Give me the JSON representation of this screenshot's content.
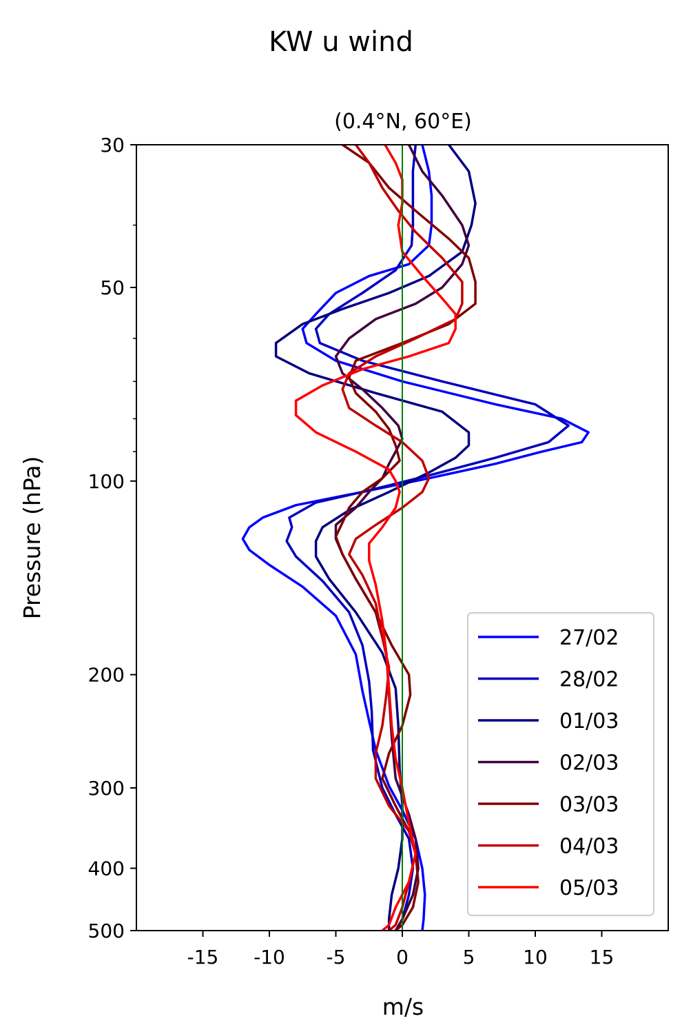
{
  "chart_data": {
    "type": "line",
    "title": "KW u wind",
    "subtitle": "(0.4°N, 60°E)",
    "xlabel": "m/s",
    "ylabel": "Pressure (hPa)",
    "xlim": [
      -20,
      20
    ],
    "ylim": [
      500,
      30
    ],
    "yscale": "log",
    "x_ticks": [
      -15,
      -10,
      -5,
      0,
      5,
      10,
      15
    ],
    "x_tick_labels": [
      "-15",
      "-10",
      "-5",
      "0",
      "5",
      "10",
      "15"
    ],
    "y_ticks": [
      30,
      50,
      100,
      200,
      300,
      400,
      500
    ],
    "y_tick_labels": [
      "30",
      "50",
      "100",
      "200",
      "300",
      "400",
      "500"
    ],
    "y_minor_ticks": [
      40,
      60,
      70,
      80,
      90
    ],
    "zero_line_color": "#008000",
    "legend_position": "lower-right",
    "series": [
      {
        "name": "27/02",
        "color": "#0000ff",
        "points": [
          [
            1.5,
            30
          ],
          [
            2.0,
            33
          ],
          [
            2.2,
            36
          ],
          [
            2.2,
            40
          ],
          [
            2.0,
            43
          ],
          [
            0.5,
            46
          ],
          [
            -2.5,
            48
          ],
          [
            -5,
            51
          ],
          [
            -6.5,
            55
          ],
          [
            -7.5,
            58
          ],
          [
            -7.2,
            61
          ],
          [
            -5,
            65
          ],
          [
            0,
            70
          ],
          [
            7,
            76
          ],
          [
            12,
            80
          ],
          [
            14,
            84
          ],
          [
            13.5,
            87
          ],
          [
            10.5,
            90
          ],
          [
            7,
            94
          ],
          [
            2,
            99
          ],
          [
            -3,
            104
          ],
          [
            -8,
            109
          ],
          [
            -10.5,
            114
          ],
          [
            -11.5,
            118
          ],
          [
            -12,
            123
          ],
          [
            -11.5,
            128
          ],
          [
            -10,
            135
          ],
          [
            -7.5,
            146
          ],
          [
            -5,
            162
          ],
          [
            -3.5,
            186
          ],
          [
            -3,
            212
          ],
          [
            -2.5,
            236
          ],
          [
            -2,
            262
          ],
          [
            -1,
            298
          ],
          [
            0,
            325
          ],
          [
            1,
            360
          ],
          [
            1.5,
            400
          ],
          [
            1.7,
            440
          ],
          [
            1.6,
            480
          ],
          [
            1.5,
            500
          ]
        ]
      },
      {
        "name": "28/02",
        "color": "#0000c0",
        "points": [
          [
            1.0,
            30
          ],
          [
            0.8,
            33
          ],
          [
            0.8,
            36
          ],
          [
            0.8,
            40
          ],
          [
            0.7,
            43
          ],
          [
            -0.5,
            47
          ],
          [
            -3,
            51
          ],
          [
            -5.5,
            55
          ],
          [
            -6.5,
            58
          ],
          [
            -6.2,
            61
          ],
          [
            -3,
            65
          ],
          [
            3,
            70
          ],
          [
            10,
            76
          ],
          [
            12.5,
            82
          ],
          [
            11,
            87
          ],
          [
            7,
            92
          ],
          [
            2,
            98
          ],
          [
            -3,
            104
          ],
          [
            -6.5,
            108
          ],
          [
            -8.5,
            114
          ],
          [
            -8.3,
            118
          ],
          [
            -8.7,
            124
          ],
          [
            -8,
            131
          ],
          [
            -6,
            143
          ],
          [
            -4,
            160
          ],
          [
            -3,
            180
          ],
          [
            -2.5,
            205
          ],
          [
            -2.3,
            228
          ],
          [
            -2.2,
            262
          ],
          [
            -1.5,
            300
          ],
          [
            -0.5,
            330
          ],
          [
            0.5,
            360
          ],
          [
            0.8,
            400
          ],
          [
            0.5,
            440
          ],
          [
            0,
            480
          ],
          [
            -0.5,
            500
          ]
        ]
      },
      {
        "name": "01/03",
        "color": "#000080",
        "points": [
          [
            3.5,
            30
          ],
          [
            5,
            33
          ],
          [
            5.5,
            37
          ],
          [
            5.2,
            40
          ],
          [
            4.5,
            44
          ],
          [
            2,
            48
          ],
          [
            -1,
            51
          ],
          [
            -4.5,
            54
          ],
          [
            -7.5,
            57
          ],
          [
            -9.5,
            61
          ],
          [
            -9.5,
            64
          ],
          [
            -7,
            68
          ],
          [
            -2,
            73
          ],
          [
            3,
            78
          ],
          [
            5,
            84
          ],
          [
            5,
            88
          ],
          [
            4,
            92
          ],
          [
            2,
            97
          ],
          [
            -1,
            104
          ],
          [
            -4,
            111
          ],
          [
            -6,
            118
          ],
          [
            -6.5,
            124
          ],
          [
            -6.5,
            131
          ],
          [
            -5.5,
            142
          ],
          [
            -3.5,
            160
          ],
          [
            -1.5,
            185
          ],
          [
            -0.5,
            210
          ],
          [
            -0.3,
            240
          ],
          [
            -0.2,
            280
          ],
          [
            0,
            320
          ],
          [
            0,
            360
          ],
          [
            -0.3,
            400
          ],
          [
            -0.8,
            440
          ],
          [
            -1,
            480
          ],
          [
            -1,
            500
          ]
        ]
      },
      {
        "name": "02/03",
        "color": "#400040",
        "points": [
          [
            0.5,
            30
          ],
          [
            1.5,
            33
          ],
          [
            3,
            36
          ],
          [
            4.5,
            40
          ],
          [
            5,
            43
          ],
          [
            4.5,
            46
          ],
          [
            3,
            50
          ],
          [
            1,
            53
          ],
          [
            -2,
            56
          ],
          [
            -4,
            60
          ],
          [
            -5,
            64
          ],
          [
            -4.5,
            68
          ],
          [
            -3,
            72
          ],
          [
            -1.5,
            77
          ],
          [
            -0.3,
            82
          ],
          [
            0,
            86
          ],
          [
            -0.5,
            90
          ],
          [
            -1,
            94
          ],
          [
            -1.5,
            99
          ],
          [
            -2.5,
            104
          ],
          [
            -3.5,
            110
          ],
          [
            -5,
            117
          ],
          [
            -5,
            123
          ],
          [
            -4.5,
            130
          ],
          [
            -3.5,
            142
          ],
          [
            -2,
            160
          ],
          [
            -1.2,
            185
          ],
          [
            -1,
            215
          ],
          [
            -0.8,
            250
          ],
          [
            -0.5,
            290
          ],
          [
            0.5,
            330
          ],
          [
            1,
            360
          ],
          [
            1.2,
            400
          ],
          [
            0.8,
            440
          ],
          [
            0,
            480
          ],
          [
            -0.5,
            500
          ]
        ]
      },
      {
        "name": "03/03",
        "color": "#800000",
        "points": [
          [
            -4.5,
            30
          ],
          [
            -2.5,
            32
          ],
          [
            -1,
            35
          ],
          [
            1,
            38
          ],
          [
            3.5,
            42
          ],
          [
            5,
            45
          ],
          [
            5.5,
            49
          ],
          [
            5.5,
            53
          ],
          [
            3.5,
            57
          ],
          [
            0,
            61
          ],
          [
            -3.5,
            65
          ],
          [
            -4,
            69
          ],
          [
            -3.5,
            73
          ],
          [
            -2,
            78
          ],
          [
            -1,
            83
          ],
          [
            -0.5,
            88
          ],
          [
            -0.2,
            93
          ],
          [
            -1.5,
            99
          ],
          [
            -3,
            104
          ],
          [
            -4,
            110
          ],
          [
            -4.5,
            116
          ],
          [
            -5,
            122
          ],
          [
            -4.5,
            130
          ],
          [
            -3.5,
            142
          ],
          [
            -2,
            160
          ],
          [
            -0.8,
            180
          ],
          [
            0.5,
            200
          ],
          [
            0.6,
            215
          ],
          [
            0,
            240
          ],
          [
            -1,
            265
          ],
          [
            -1.5,
            290
          ],
          [
            -0.5,
            320
          ],
          [
            0.5,
            350
          ],
          [
            1,
            380
          ],
          [
            1.2,
            420
          ],
          [
            0.8,
            460
          ],
          [
            0,
            490
          ],
          [
            -0.5,
            500
          ]
        ]
      },
      {
        "name": "04/03",
        "color": "#c00000",
        "points": [
          [
            -3.5,
            30
          ],
          [
            -2.5,
            32
          ],
          [
            -1.5,
            35
          ],
          [
            -0.3,
            38
          ],
          [
            1,
            41
          ],
          [
            3,
            45
          ],
          [
            4.5,
            49
          ],
          [
            4.5,
            53
          ],
          [
            4,
            56
          ],
          [
            1,
            60
          ],
          [
            -2,
            64
          ],
          [
            -4,
            68
          ],
          [
            -4.5,
            72
          ],
          [
            -4,
            77
          ],
          [
            -2,
            82
          ],
          [
            0,
            87
          ],
          [
            1.5,
            93
          ],
          [
            2,
            99
          ],
          [
            1.5,
            104
          ],
          [
            0,
            110
          ],
          [
            -2,
            117
          ],
          [
            -3.5,
            123
          ],
          [
            -4,
            130
          ],
          [
            -3,
            140
          ],
          [
            -2,
            155
          ],
          [
            -1.5,
            175
          ],
          [
            -1,
            195
          ],
          [
            -1.2,
            215
          ],
          [
            -1.5,
            240
          ],
          [
            -2,
            265
          ],
          [
            -2,
            290
          ],
          [
            -1,
            320
          ],
          [
            0.5,
            350
          ],
          [
            1,
            380
          ],
          [
            0.5,
            420
          ],
          [
            0,
            460
          ],
          [
            -0.5,
            490
          ],
          [
            -1,
            500
          ]
        ]
      },
      {
        "name": "05/03",
        "color": "#ff0000",
        "points": [
          [
            -1.3,
            30
          ],
          [
            -0.5,
            32
          ],
          [
            0,
            34
          ],
          [
            0,
            37
          ],
          [
            -0.3,
            40
          ],
          [
            0,
            44
          ],
          [
            1.5,
            48
          ],
          [
            3,
            52
          ],
          [
            4,
            55
          ],
          [
            4,
            58
          ],
          [
            3.5,
            61
          ],
          [
            0.5,
            64
          ],
          [
            -3,
            67
          ],
          [
            -6,
            71
          ],
          [
            -8,
            75
          ],
          [
            -8,
            79
          ],
          [
            -6.5,
            84
          ],
          [
            -3.5,
            90
          ],
          [
            -1,
            96
          ],
          [
            -0.5,
            100
          ],
          [
            -0.2,
            104
          ],
          [
            -0.5,
            110
          ],
          [
            -1.5,
            118
          ],
          [
            -2.5,
            125
          ],
          [
            -2.5,
            133
          ],
          [
            -2,
            145
          ],
          [
            -1.5,
            165
          ],
          [
            -1.2,
            185
          ],
          [
            -1,
            210
          ],
          [
            -0.8,
            240
          ],
          [
            -0.5,
            270
          ],
          [
            0,
            300
          ],
          [
            0.5,
            340
          ],
          [
            1,
            380
          ],
          [
            0.5,
            420
          ],
          [
            -0.5,
            460
          ],
          [
            -1,
            490
          ],
          [
            -1.5,
            500
          ]
        ]
      }
    ]
  }
}
